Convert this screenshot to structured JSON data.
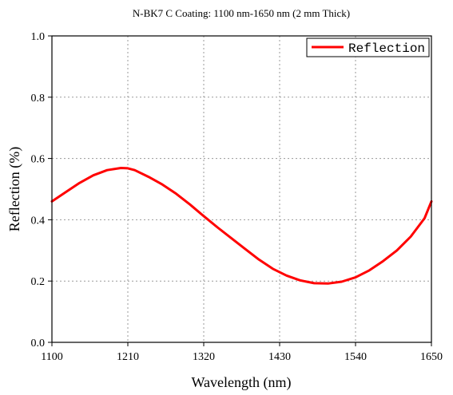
{
  "chart_data": {
    "type": "line",
    "title": "N-BK7 C Coating: 1100 nm-1650 nm (2 mm Thick)",
    "xlabel": "Wavelength (nm)",
    "ylabel": "Reflection (%)",
    "xlim": [
      1100,
      1650
    ],
    "ylim": [
      0.0,
      1.0
    ],
    "x_ticks": [
      "1100",
      "1210",
      "1320",
      "1430",
      "1540",
      "1650"
    ],
    "y_ticks": [
      "0.0",
      "0.2",
      "0.4",
      "0.6",
      "0.8",
      "1.0"
    ],
    "grid": true,
    "legend": {
      "position": "top-right",
      "entries": [
        "Reflection"
      ]
    },
    "series": [
      {
        "name": "Reflection",
        "color": "#ff0000",
        "x": [
          1100,
          1120,
          1140,
          1160,
          1180,
          1200,
          1210,
          1220,
          1240,
          1260,
          1280,
          1300,
          1320,
          1340,
          1360,
          1380,
          1400,
          1420,
          1440,
          1460,
          1480,
          1500,
          1520,
          1540,
          1560,
          1580,
          1600,
          1620,
          1640,
          1650
        ],
        "y": [
          0.46,
          0.49,
          0.52,
          0.545,
          0.562,
          0.569,
          0.568,
          0.562,
          0.54,
          0.515,
          0.485,
          0.45,
          0.412,
          0.375,
          0.34,
          0.305,
          0.27,
          0.24,
          0.218,
          0.202,
          0.193,
          0.192,
          0.198,
          0.212,
          0.235,
          0.265,
          0.3,
          0.345,
          0.405,
          0.46
        ]
      }
    ]
  }
}
